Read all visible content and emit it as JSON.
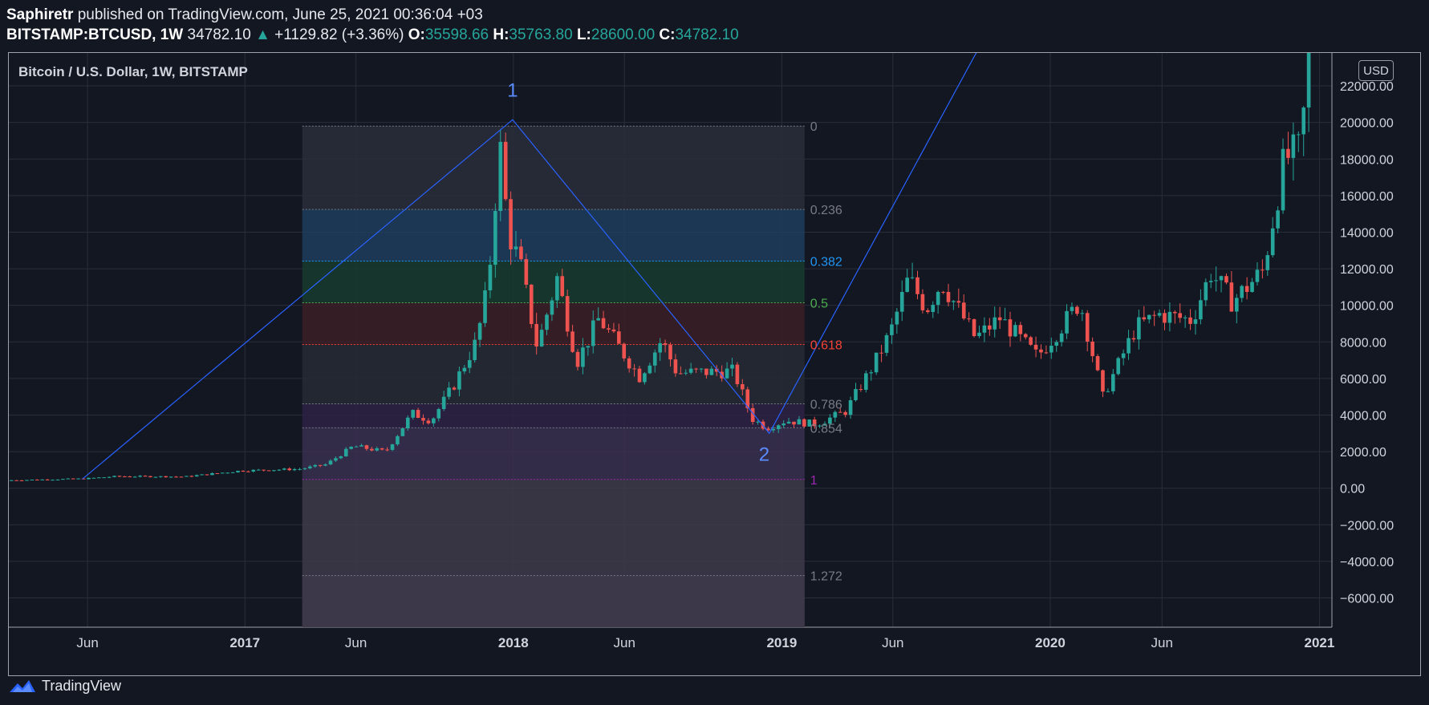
{
  "header": {
    "author": "Saphiretr",
    "published_text": "published on TradingView.com, June 25, 2021 00:36:04 +03",
    "symbol": "BITSTAMP:BTCUSD, 1W",
    "last_price": "34782.10",
    "change": "+1129.82 (+3.36%)",
    "open_label": "O:",
    "open": "35598.66",
    "high_label": "H:",
    "high": "35763.80",
    "low_label": "L:",
    "low": "28600.00",
    "close_label": "C:",
    "close": "34782.10"
  },
  "footer": {
    "brand": "TradingView"
  },
  "colors": {
    "background": "#131722",
    "grid": "#2a2e39",
    "up": "#26a69a",
    "down": "#ef5350",
    "line": "#2962ff",
    "text": "#d1d4dc"
  },
  "chart_data": {
    "type": "candlestick",
    "title": "Bitcoin / U.S. Dollar, 1W, BITSTAMP",
    "currency": "USD",
    "x_range": [
      "2016-02-15",
      "2021-01-18"
    ],
    "y_range": [
      -7600,
      23800
    ],
    "y_ticks": [
      22000,
      20000,
      18000,
      16000,
      14000,
      12000,
      10000,
      8000,
      6000,
      4000,
      2000,
      0,
      -2000,
      -4000,
      -6000
    ],
    "y_tick_labels": [
      "22000.00",
      "20000.00",
      "18000.00",
      "16000.00",
      "14000.00",
      "12000.00",
      "10000.00",
      "8000.00",
      "6000.00",
      "4000.00",
      "2000.00",
      "0.00",
      "−2000.00",
      "−4000.00",
      "−6000.00"
    ],
    "x_ticks": [
      {
        "label": "Jun",
        "date": "2016-06-01",
        "bold": false
      },
      {
        "label": "2017",
        "date": "2017-01-01",
        "bold": true
      },
      {
        "label": "Jun",
        "date": "2017-06-01",
        "bold": false
      },
      {
        "label": "2018",
        "date": "2018-01-01",
        "bold": true
      },
      {
        "label": "Jun",
        "date": "2018-06-01",
        "bold": false
      },
      {
        "label": "2019",
        "date": "2019-01-01",
        "bold": true
      },
      {
        "label": "Jun",
        "date": "2019-06-01",
        "bold": false
      },
      {
        "label": "2020",
        "date": "2020-01-01",
        "bold": true
      },
      {
        "label": "Jun",
        "date": "2020-06-01",
        "bold": false
      },
      {
        "label": "2021",
        "date": "2021-01-01",
        "bold": true
      }
    ],
    "anchors": [
      {
        "date": "2016-02-15",
        "price": 430
      },
      {
        "date": "2016-05-30",
        "price": 520
      },
      {
        "date": "2016-07-15",
        "price": 650
      },
      {
        "date": "2016-10-15",
        "price": 630
      },
      {
        "date": "2016-12-31",
        "price": 960
      },
      {
        "date": "2017-03-20",
        "price": 1050
      },
      {
        "date": "2017-04-25",
        "price": 1300
      },
      {
        "date": "2017-06-01",
        "price": 2300
      },
      {
        "date": "2017-07-15",
        "price": 2000
      },
      {
        "date": "2017-08-20",
        "price": 4100
      },
      {
        "date": "2017-09-15",
        "price": 3700
      },
      {
        "date": "2017-10-15",
        "price": 5600
      },
      {
        "date": "2017-11-15",
        "price": 8000
      },
      {
        "date": "2017-12-01",
        "price": 11000
      },
      {
        "date": "2017-12-17",
        "price": 18800
      },
      {
        "date": "2017-12-29",
        "price": 14000
      },
      {
        "date": "2018-01-15",
        "price": 12000
      },
      {
        "date": "2018-02-06",
        "price": 7700
      },
      {
        "date": "2018-03-05",
        "price": 11500
      },
      {
        "date": "2018-04-01",
        "price": 6900
      },
      {
        "date": "2018-05-01",
        "price": 9300
      },
      {
        "date": "2018-06-25",
        "price": 6100
      },
      {
        "date": "2018-07-25",
        "price": 8100
      },
      {
        "date": "2018-08-15",
        "price": 6300
      },
      {
        "date": "2018-10-31",
        "price": 6400
      },
      {
        "date": "2018-11-25",
        "price": 3800
      },
      {
        "date": "2018-12-15",
        "price": 3300
      },
      {
        "date": "2019-01-10",
        "price": 3700
      },
      {
        "date": "2019-02-20",
        "price": 3500
      },
      {
        "date": "2019-04-01",
        "price": 4200
      },
      {
        "date": "2019-05-10",
        "price": 6800
      },
      {
        "date": "2019-06-01",
        "price": 8500
      },
      {
        "date": "2019-06-26",
        "price": 11500
      },
      {
        "date": "2019-07-20",
        "price": 9800
      },
      {
        "date": "2019-08-10",
        "price": 11300
      },
      {
        "date": "2019-09-25",
        "price": 8200
      },
      {
        "date": "2019-10-28",
        "price": 9300
      },
      {
        "date": "2019-12-18",
        "price": 7200
      },
      {
        "date": "2020-01-15",
        "price": 8600
      },
      {
        "date": "2020-02-14",
        "price": 10200
      },
      {
        "date": "2020-03-16",
        "price": 5000
      },
      {
        "date": "2020-04-30",
        "price": 8800
      },
      {
        "date": "2020-06-01",
        "price": 9500
      },
      {
        "date": "2020-07-15",
        "price": 9200
      },
      {
        "date": "2020-08-10",
        "price": 11800
      },
      {
        "date": "2020-09-08",
        "price": 10200
      },
      {
        "date": "2020-10-20",
        "price": 11900
      },
      {
        "date": "2020-11-18",
        "price": 18000
      },
      {
        "date": "2020-12-10",
        "price": 18500
      },
      {
        "date": "2020-12-28",
        "price": 27000
      }
    ],
    "fib_retracement": {
      "start_date": "2017-03-20",
      "end_date": "2019-02-01",
      "price_at_0": 19800,
      "price_at_1": 480,
      "levels": [
        {
          "label": "0",
          "value": 0,
          "color": "#787b86",
          "fill": "#2a2e39"
        },
        {
          "label": "0.236",
          "value": 0.236,
          "color": "#787b86",
          "fill": "#1e3d5c"
        },
        {
          "label": "0.382",
          "value": 0.382,
          "color": "#2196f3",
          "fill": "#173b2e"
        },
        {
          "label": "0.5",
          "value": 0.5,
          "color": "#4caf50",
          "fill": "#3b1f26"
        },
        {
          "label": "0.618",
          "value": 0.618,
          "color": "#f44336",
          "fill": "#262a35"
        },
        {
          "label": "0.786",
          "value": 0.786,
          "color": "#787b86",
          "fill": "#2e2143"
        },
        {
          "label": "0.854",
          "value": 0.854,
          "color": "#787b86",
          "fill": "#3a3050"
        },
        {
          "label": "1",
          "value": 1,
          "color": "#9c27b0",
          "fill": "#3e3a4a"
        },
        {
          "label": "1.272",
          "value": 1.272,
          "color": "#787b86",
          "fill": "#3e3a4a"
        }
      ]
    },
    "trend_lines": [
      {
        "points": [
          [
            "2016-05-25",
            500
          ],
          [
            "2017-12-31",
            20150
          ],
          [
            "2018-12-15",
            3000
          ],
          [
            "2019-09-25",
            24000
          ]
        ]
      }
    ],
    "annotations": [
      {
        "text": "1",
        "date": "2017-12-31",
        "price": 21400
      },
      {
        "text": "2",
        "date": "2018-12-08",
        "price": 1500
      }
    ]
  }
}
